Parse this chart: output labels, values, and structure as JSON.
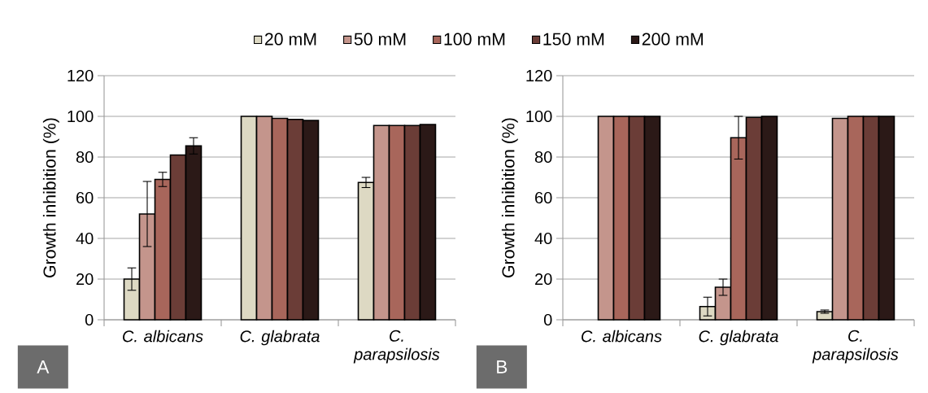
{
  "chart_data": [
    {
      "type": "bar",
      "ylabel": "Growth inhibition (%)",
      "categories": [
        "C. albicans",
        "C. glabrata",
        "C. parapsilosis"
      ],
      "ylim": [
        0,
        120
      ],
      "yticks": [
        0,
        20,
        40,
        60,
        80,
        100,
        120
      ],
      "grid": "y",
      "legend": "top",
      "annotations": [
        "A"
      ],
      "series": [
        {
          "name": "20 mM",
          "color": "#ddd9c3",
          "values": [
            20,
            100,
            67.5
          ],
          "errors": [
            5.5,
            null,
            2.5
          ]
        },
        {
          "name": "50 mM",
          "color": "#c4958c",
          "values": [
            52,
            100,
            95.5
          ],
          "errors": [
            16,
            null,
            null
          ]
        },
        {
          "name": "100 mM",
          "color": "#a8665b",
          "values": [
            69,
            99,
            95.5
          ],
          "errors": [
            3.5,
            null,
            null
          ]
        },
        {
          "name": "150 mM",
          "color": "#6b3d37",
          "values": [
            81,
            98.5,
            95.5
          ],
          "errors": [
            null,
            null,
            null
          ]
        },
        {
          "name": "200 mM",
          "color": "#2b1917",
          "values": [
            85.5,
            98,
            96
          ],
          "errors": [
            4,
            null,
            null
          ]
        }
      ]
    },
    {
      "type": "bar",
      "ylabel": "Growth inhibition (%)",
      "categories": [
        "C. albicans",
        "C. glabrata",
        "C. parapsilosis"
      ],
      "ylim": [
        0,
        120
      ],
      "yticks": [
        0,
        20,
        40,
        60,
        80,
        100,
        120
      ],
      "grid": "y",
      "annotations": [
        "B"
      ],
      "series": [
        {
          "color": "#ddd9c3",
          "values": [
            0,
            6.5,
            4
          ],
          "errors": [
            null,
            4.6,
            0.8
          ]
        },
        {
          "color": "#c4958c",
          "values": [
            100,
            16,
            99
          ],
          "errors": [
            null,
            4,
            null
          ]
        },
        {
          "color": "#a8665b",
          "values": [
            100,
            89.5,
            100
          ],
          "errors": [
            null,
            10.5,
            null
          ]
        },
        {
          "color": "#6b3d37",
          "values": [
            100,
            99.5,
            100
          ],
          "errors": [
            null,
            null,
            null
          ]
        },
        {
          "color": "#2b1917",
          "values": [
            100,
            100,
            100
          ],
          "errors": [
            null,
            null,
            null
          ]
        }
      ]
    }
  ]
}
